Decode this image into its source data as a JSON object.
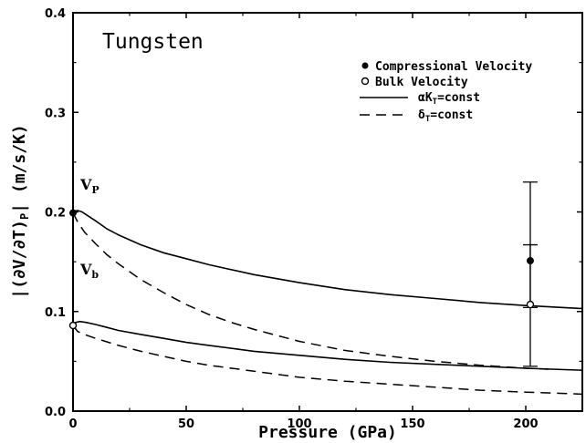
{
  "chart_data": {
    "type": "line",
    "title": "Tungsten",
    "xlabel": "Pressure (GPa)",
    "ylabel": "|(∂V/∂T)P| (m/s/K)",
    "xlim": [
      0,
      225
    ],
    "ylim": [
      0.0,
      0.4
    ],
    "x_ticks": [
      0,
      50,
      100,
      150,
      200
    ],
    "y_ticks": [
      "0.0",
      "0.1",
      "0.2",
      "0.3",
      "0.4"
    ],
    "grid": false,
    "legend_position": "top-right",
    "legend": [
      {
        "label": "Compressional Velocity",
        "marker": "filled-circle"
      },
      {
        "label": "Bulk Velocity",
        "marker": "open-circle"
      },
      {
        "label": "αK_T=const",
        "style": "solid"
      },
      {
        "label": "δ_T=const",
        "style": "dashed"
      }
    ],
    "annotations": [
      {
        "text": "V",
        "sub": "P",
        "x": 3,
        "y": 0.205
      },
      {
        "text": "V",
        "sub": "b",
        "x": 3,
        "y": 0.092
      }
    ],
    "series": [
      {
        "name": "αK_T=const",
        "style": "solid",
        "curve": "Vp",
        "x": [
          0,
          1,
          2,
          4,
          6,
          8,
          10,
          15,
          20,
          30,
          40,
          50,
          60,
          80,
          100,
          120,
          140,
          160,
          180,
          200,
          225
        ],
        "y": [
          0.199,
          0.201,
          0.2015,
          0.2,
          0.197,
          0.194,
          0.191,
          0.183,
          0.177,
          0.167,
          0.159,
          0.153,
          0.147,
          0.137,
          0.129,
          0.122,
          0.117,
          0.113,
          0.109,
          0.106,
          0.103
        ]
      },
      {
        "name": "δ_T=const",
        "style": "dashed",
        "curve": "Vp",
        "x": [
          0,
          2,
          5,
          10,
          15,
          20,
          30,
          40,
          50,
          60,
          70,
          80,
          100,
          120,
          140,
          160,
          180,
          200,
          210
        ],
        "y": [
          0.199,
          0.19,
          0.18,
          0.168,
          0.157,
          0.148,
          0.132,
          0.119,
          0.107,
          0.097,
          0.089,
          0.082,
          0.07,
          0.061,
          0.055,
          0.05,
          0.046,
          0.043,
          0.042
        ]
      },
      {
        "name": "αK_T=const",
        "style": "solid",
        "curve": "Vb",
        "x": [
          0,
          1,
          3,
          6,
          10,
          15,
          20,
          30,
          40,
          50,
          60,
          80,
          100,
          120,
          140,
          160,
          180,
          200,
          225
        ],
        "y": [
          0.086,
          0.089,
          0.09,
          0.089,
          0.087,
          0.084,
          0.081,
          0.077,
          0.073,
          0.069,
          0.066,
          0.06,
          0.056,
          0.052,
          0.049,
          0.047,
          0.045,
          0.043,
          0.041
        ]
      },
      {
        "name": "δ_T=const",
        "style": "dashed",
        "curve": "Vb",
        "x": [
          0,
          2,
          5,
          10,
          20,
          30,
          40,
          50,
          60,
          80,
          100,
          120,
          140,
          160,
          180,
          200,
          225
        ],
        "y": [
          0.086,
          0.08,
          0.077,
          0.073,
          0.066,
          0.06,
          0.055,
          0.05,
          0.046,
          0.04,
          0.034,
          0.03,
          0.027,
          0.024,
          0.021,
          0.019,
          0.017
        ]
      },
      {
        "name": "Compressional Velocity",
        "type": "scatter",
        "marker": "filled-circle",
        "x": [
          0,
          202
        ],
        "y": [
          0.199,
          0.151
        ],
        "err_lo": [
          0,
          0.104
        ],
        "err_hi": [
          0,
          0.23
        ]
      },
      {
        "name": "Bulk Velocity",
        "type": "scatter",
        "marker": "open-circle",
        "x": [
          0,
          202
        ],
        "y": [
          0.086,
          0.107
        ],
        "err_lo": [
          0,
          0.045
        ],
        "err_hi": [
          0,
          0.167
        ]
      }
    ]
  }
}
